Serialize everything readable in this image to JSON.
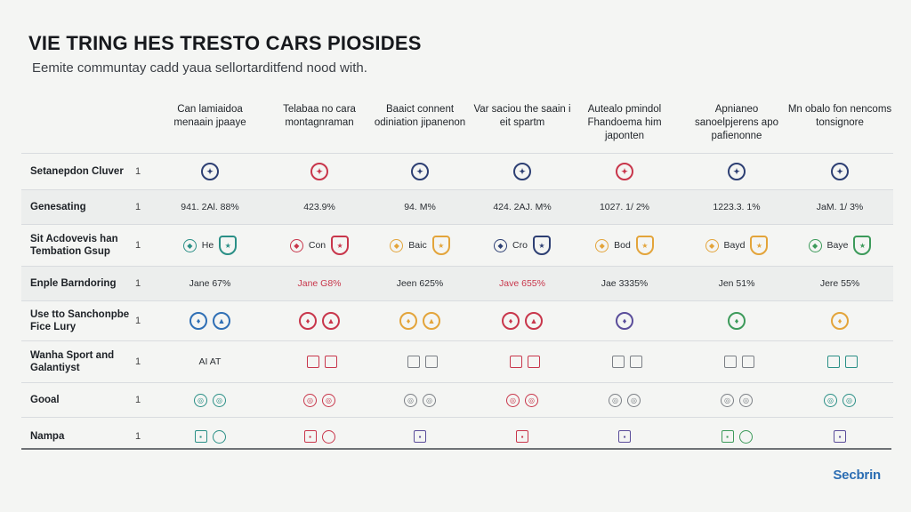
{
  "title": "VIE TRING HES TRESTO CARS PIOSIDES",
  "subtitle": "Eemite communtay cadd yaua sellortarditfend nood with.",
  "brand": "Secbrin",
  "columns": [
    "Can lamiaidoa menaain jpaaye",
    "Telabaa no cara montagnraman",
    "Baaict connent odiniation jipanenon",
    "Var saciou the saain i eit spartm",
    "Autealo pmindol Fhandoema him japonten",
    "Apnianeo sanoelpjerens apo pafienonne",
    "Mn obalo fon nencoms tonsignore"
  ],
  "rows": [
    {
      "label": "Setanepdon Cluver",
      "num": "1",
      "kind": "icon"
    },
    {
      "label": "Genesating",
      "num": "1",
      "kind": "text",
      "values": [
        "941. 2Al. 88%",
        "423.9%",
        "94. M%",
        "424. 2AJ. M%",
        "1027. 1/ 2%",
        "1223.3. 1%",
        "JaM. 1/ 3%"
      ]
    },
    {
      "label": "Sit Acdovevis han Tembation Gsup",
      "num": "1",
      "kind": "pair",
      "values": [
        "He",
        "Con",
        "Baic",
        "Cro",
        "Bod",
        "Bayd",
        "Baye"
      ]
    },
    {
      "label": "Enple Barndoring",
      "num": "1",
      "kind": "text",
      "values": [
        "Jane 67%",
        "Jane G8%",
        "Jeen 625%",
        "Jave 655%",
        "Jae 3335%",
        "Jen 51%",
        "Jere 55%"
      ]
    },
    {
      "label": "Use tto Sanchonpbe Fice Lury",
      "num": "1",
      "kind": "icon2"
    },
    {
      "label": "Wanha Sport and Galantiyst",
      "num": "1",
      "kind": "small",
      "values": [
        "AI  AT",
        "",
        "",
        "",
        "",
        "",
        ""
      ]
    },
    {
      "label": "Gooal",
      "num": "1",
      "kind": "icon3"
    },
    {
      "label": "Nampa",
      "num": "1",
      "kind": "icon4"
    }
  ],
  "colors": {
    "navy": "#2d3f73",
    "red": "#c8364b",
    "orange": "#e3a43a",
    "green": "#3c9a5a",
    "teal": "#2a8f86",
    "blue": "#2f6fb5",
    "purple": "#5a4d9a",
    "grey": "#7b7f85"
  }
}
